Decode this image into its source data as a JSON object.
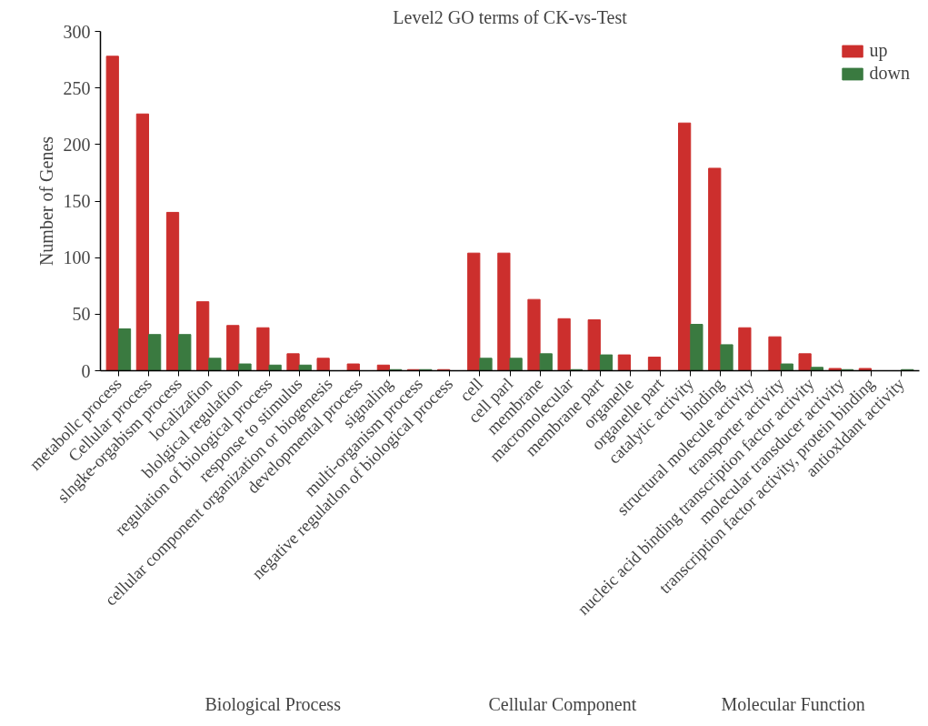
{
  "chart_data": {
    "type": "bar",
    "title": "Level2 GO terms of CK-vs-Test",
    "ylabel": "Number of Genes",
    "categories": [
      "metabollc process",
      "Cellular process",
      "slngke-orgabism process",
      "localizafion",
      "blolgical regulafion",
      "regulation of biological process",
      "response to stimulus",
      "cellular component organization or biogenesis",
      "developmental process",
      "signaling",
      "multi-organism process",
      "negative regulatlon of biological process",
      "cell",
      "cell parl",
      "membrane",
      "macromolecular",
      "membrane part",
      "organelle",
      "organelle part",
      "catalytic activity",
      "binding",
      "structural molecule activity",
      "transporter activity",
      "nucleic acid binding transcription factor activity",
      "molecular transducer activity",
      "transcription factor activity, protein binding",
      "antioxldant activity"
    ],
    "series": [
      {
        "name": "up",
        "color": "#cc2f2d",
        "values": [
          278,
          227,
          140,
          61,
          40,
          38,
          15,
          11,
          6,
          5,
          1,
          1,
          104,
          104,
          63,
          46,
          45,
          14,
          12,
          219,
          179,
          38,
          30,
          15,
          2,
          2,
          0
        ]
      },
      {
        "name": "down",
        "color": "#3a7a40",
        "values": [
          37,
          32,
          32,
          11,
          6,
          5,
          5,
          0,
          0,
          1,
          1,
          0,
          11,
          11,
          15,
          1,
          14,
          0,
          0,
          41,
          23,
          0,
          6,
          3,
          1,
          0,
          1
        ]
      }
    ],
    "ylim": [
      0,
      300
    ],
    "yticks": [
      0,
      50,
      100,
      150,
      200,
      250,
      300
    ],
    "grid": false,
    "legend": "top right",
    "annotations": [
      "Biological Process",
      "Cellular Component",
      "Molecular Function"
    ]
  }
}
